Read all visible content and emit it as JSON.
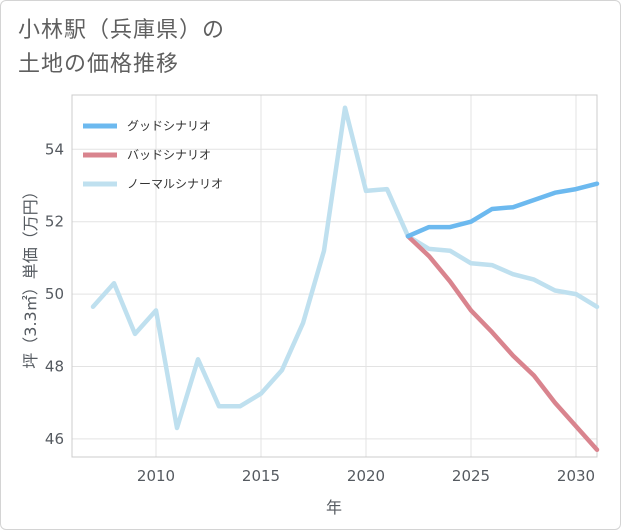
{
  "chart_data": {
    "type": "line",
    "title": "小林駅（兵庫県）の\n土地の価格推移",
    "xlabel": "年",
    "ylabel": "坪（3.3㎡）単価（万円）",
    "xlim": [
      2006,
      2031
    ],
    "ylim": [
      45.5,
      55.5
    ],
    "xticks": [
      2010,
      2015,
      2020,
      2025,
      2030
    ],
    "yticks": [
      46,
      48,
      50,
      52,
      54
    ],
    "legend_position": "top-left",
    "series": [
      {
        "name": "グッドシナリオ",
        "color": "#6cb9ef",
        "x": [
          2022,
          2023,
          2024,
          2025,
          2026,
          2027,
          2028,
          2029,
          2030,
          2031
        ],
        "values": [
          51.6,
          51.85,
          51.85,
          52.0,
          52.35,
          52.4,
          52.6,
          52.8,
          52.9,
          53.05
        ]
      },
      {
        "name": "バッドシナリオ",
        "color": "#d9848e",
        "x": [
          2022,
          2023,
          2024,
          2025,
          2026,
          2027,
          2028,
          2029,
          2030,
          2031
        ],
        "values": [
          51.6,
          51.05,
          50.35,
          49.55,
          48.95,
          48.3,
          47.75,
          47.0,
          46.35,
          45.7
        ]
      },
      {
        "name": "ノーマルシナリオ",
        "color": "#bfe0ef",
        "x": [
          2007,
          2008,
          2009,
          2010,
          2011,
          2012,
          2013,
          2014,
          2015,
          2016,
          2017,
          2018,
          2019,
          2020,
          2021,
          2022,
          2023,
          2024,
          2025,
          2026,
          2027,
          2028,
          2029,
          2030,
          2031
        ],
        "values": [
          49.65,
          50.3,
          48.9,
          49.55,
          46.3,
          48.2,
          46.9,
          46.9,
          47.25,
          47.9,
          49.2,
          51.2,
          55.15,
          52.85,
          52.9,
          51.6,
          51.25,
          51.2,
          50.85,
          50.8,
          50.55,
          50.4,
          50.1,
          50.0,
          49.65
        ]
      }
    ]
  }
}
